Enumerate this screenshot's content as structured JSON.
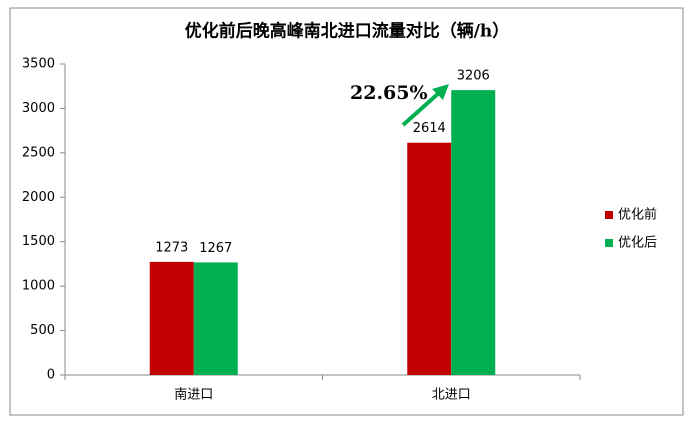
{
  "chart_data": {
    "type": "bar",
    "title": "优化前后晚高峰南北进口流量对比（辆/h）",
    "categories": [
      "南进口",
      "北进口"
    ],
    "series": [
      {
        "name": "优化前",
        "color": "#c00000",
        "values": [
          1273,
          2614
        ]
      },
      {
        "name": "优化后",
        "color": "#00b050",
        "values": [
          1267,
          3206
        ]
      }
    ],
    "ylim": [
      0,
      3500
    ],
    "yticks": [
      0,
      500,
      1000,
      1500,
      2000,
      2500,
      3000,
      3500
    ],
    "grid": false,
    "legend": "right",
    "annotations": [
      {
        "text": "22.65%",
        "color": "#00b050"
      }
    ]
  }
}
